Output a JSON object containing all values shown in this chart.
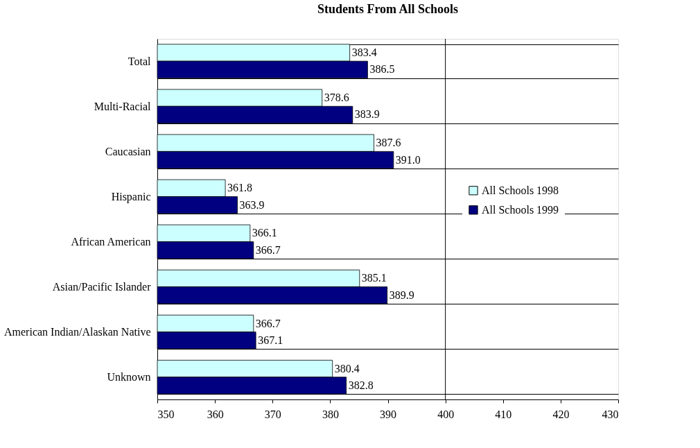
{
  "chart_data": {
    "type": "bar",
    "orientation": "horizontal",
    "title": "Students From All Schools",
    "categories": [
      "Total",
      "Multi-Racial",
      "Caucasian",
      "Hispanic",
      "African American",
      "Asian/Pacific Islander",
      "American Indian/Alaskan Native",
      "Unknown"
    ],
    "series": [
      {
        "name": "All Schools 1998",
        "color": "#ccffff",
        "values": [
          383.4,
          378.6,
          387.6,
          361.8,
          366.1,
          385.1,
          366.7,
          380.4
        ],
        "value_labels": [
          "383.4",
          "378.6",
          "387.6",
          "361.8",
          "366.1",
          "385.1",
          "366.7",
          "380.4"
        ]
      },
      {
        "name": "All Schools 1999",
        "color": "#000080",
        "values": [
          386.5,
          383.9,
          391.0,
          363.9,
          366.7,
          389.9,
          367.1,
          382.8
        ],
        "value_labels": [
          "386.5",
          "383.9",
          "391.0",
          "363.9",
          "366.7",
          "389.9",
          "367.1",
          "382.8"
        ]
      }
    ],
    "xlim": [
      350,
      430
    ],
    "xticks": [
      350,
      360,
      370,
      380,
      390,
      400,
      410,
      420,
      430
    ],
    "ref_lines": [
      {
        "axis": "x",
        "value": 400
      }
    ],
    "grid": "y",
    "legend": "right"
  }
}
